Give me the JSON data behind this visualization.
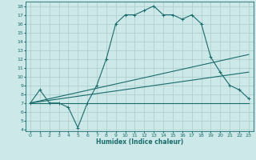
{
  "xlabel": "Humidex (Indice chaleur)",
  "bg_color": "#cce8e8",
  "grid_color": "#aacccc",
  "line_color": "#1a6b6b",
  "xlim": [
    -0.5,
    23.5
  ],
  "ylim": [
    3.8,
    18.5
  ],
  "xticks": [
    0,
    1,
    2,
    3,
    4,
    5,
    6,
    7,
    8,
    9,
    10,
    11,
    12,
    13,
    14,
    15,
    16,
    17,
    18,
    19,
    20,
    21,
    22,
    23
  ],
  "yticks": [
    4,
    5,
    6,
    7,
    8,
    9,
    10,
    11,
    12,
    13,
    14,
    15,
    16,
    17,
    18
  ],
  "line1_x": [
    0,
    1,
    2,
    3,
    4,
    5,
    6,
    7,
    8,
    9,
    10,
    11,
    12,
    13,
    14,
    15,
    16,
    17,
    18,
    19,
    20,
    21,
    22,
    23
  ],
  "line1_y": [
    7,
    8.5,
    7,
    7,
    6.5,
    4.2,
    7,
    9,
    12,
    16,
    17,
    17,
    17.5,
    18,
    17,
    17,
    16.5,
    17,
    16,
    12.2,
    10.5,
    9,
    8.5,
    7.5
  ],
  "line2_x": [
    0,
    23
  ],
  "line2_y": [
    7,
    12.5
  ],
  "line3_x": [
    0,
    23
  ],
  "line3_y": [
    7,
    10.5
  ],
  "line4_x": [
    0,
    23
  ],
  "line4_y": [
    7,
    7
  ],
  "marker": "+"
}
